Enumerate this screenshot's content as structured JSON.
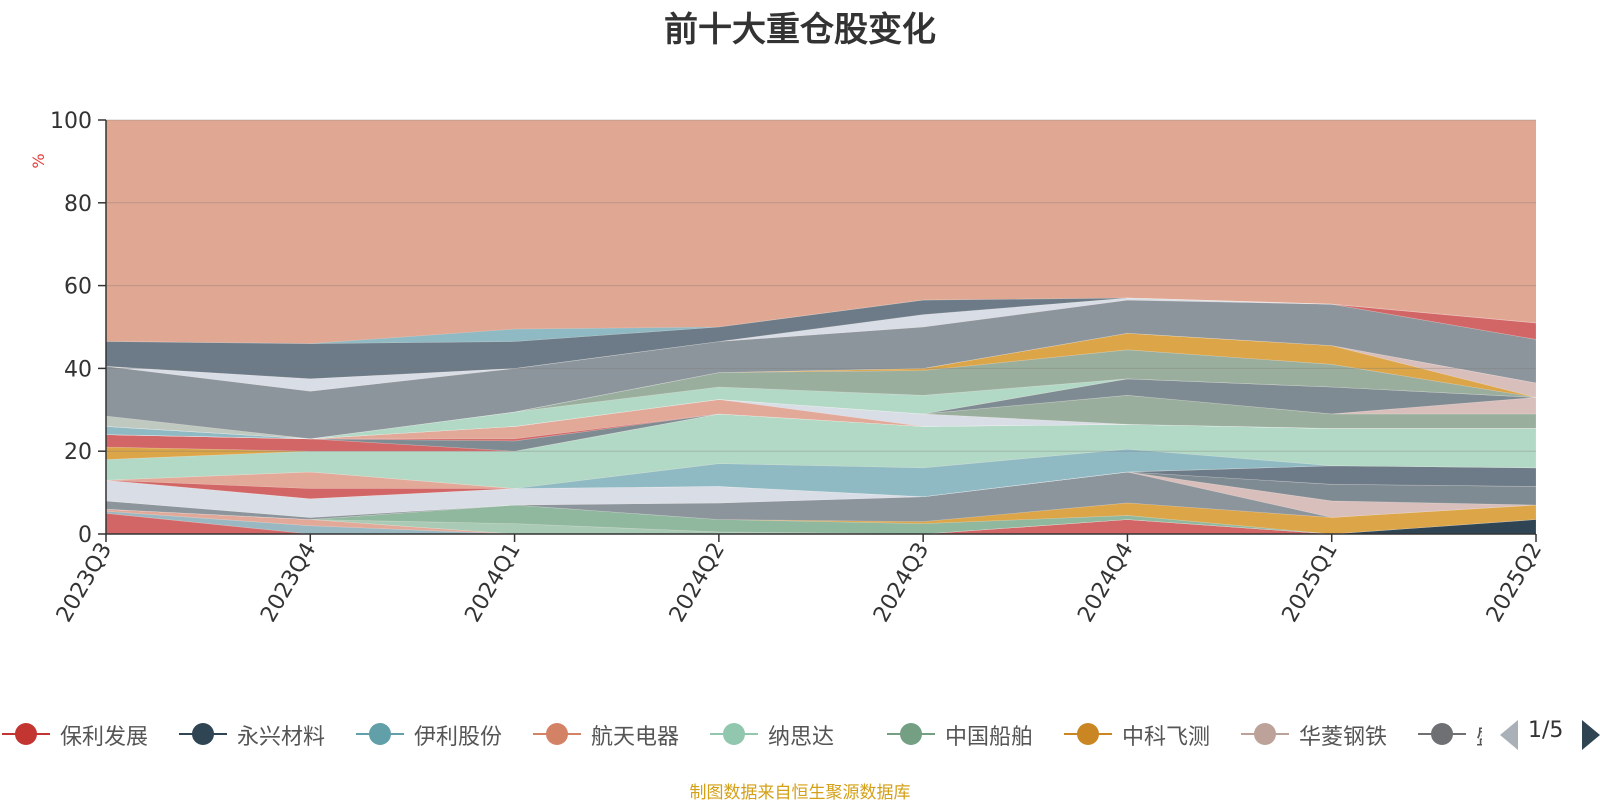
{
  "chart_data": {
    "type": "area",
    "title": "前十大重仓股变化",
    "ylabel": "%",
    "ylim": [
      0,
      100
    ],
    "yticks": [
      0,
      20,
      40,
      60,
      80,
      100
    ],
    "categories": [
      "2023Q3",
      "2023Q4",
      "2024Q1",
      "2024Q2",
      "2024Q3",
      "2024Q4",
      "2025Q1",
      "2025Q2"
    ],
    "grid": true,
    "stacked": true,
    "background_fill": "#e0a792",
    "layers": [
      {
        "color": "#d26666",
        "values": [
          5,
          0,
          0,
          0,
          0,
          3.5,
          0,
          0
        ]
      },
      {
        "color": "#9ab8c2",
        "values": [
          0.5,
          2,
          0,
          0,
          0,
          0,
          0,
          0
        ]
      },
      {
        "color": "#e2a898",
        "values": [
          0.5,
          1.5,
          0,
          0,
          0,
          0,
          0,
          0
        ]
      },
      {
        "color": "#2f4554",
        "values": [
          0,
          0,
          0,
          0,
          0,
          0,
          0,
          3.5
        ]
      },
      {
        "color": "#a9cbb6",
        "values": [
          0,
          0,
          2.5,
          0.5,
          0,
          0,
          0,
          0
        ]
      },
      {
        "color": "#90b89f",
        "values": [
          0,
          0,
          4.5,
          3,
          2.5,
          1,
          0,
          0
        ]
      },
      {
        "color": "#dba548",
        "values": [
          0,
          0,
          0,
          0,
          0.5,
          3,
          4,
          3.5
        ]
      },
      {
        "color": "#8c959c",
        "values": [
          2,
          0.5,
          0,
          4,
          6,
          7.5,
          0,
          0
        ]
      },
      {
        "color": "#d9bfbb",
        "values": [
          0,
          0,
          0,
          0,
          0,
          0,
          4,
          0
        ]
      },
      {
        "color": "#7f8b92",
        "values": [
          0,
          0,
          0,
          0,
          0,
          0,
          4,
          4.5
        ]
      },
      {
        "color": "#d8dde6",
        "values": [
          5,
          4.5,
          4,
          4,
          0,
          0,
          0,
          0
        ]
      },
      {
        "color": "#6c7b87",
        "values": [
          0,
          0,
          0,
          0,
          0,
          0,
          4.5,
          4.5
        ]
      },
      {
        "color": "#d26666",
        "values": [
          0,
          2.5,
          0,
          0,
          0,
          0,
          0,
          0
        ]
      },
      {
        "color": "#e2a898",
        "values": [
          0,
          4,
          0,
          0,
          0,
          0,
          0,
          0
        ]
      },
      {
        "color": "#8fbac4",
        "values": [
          0,
          0,
          0,
          5.5,
          7,
          5.5,
          0,
          0
        ]
      },
      {
        "color": "#b2d9c5",
        "values": [
          5,
          5,
          9,
          12,
          10,
          6,
          9,
          9.5
        ]
      },
      {
        "color": "#dba548",
        "values": [
          3,
          0,
          0,
          0,
          0,
          0,
          0,
          0
        ]
      },
      {
        "color": "#d26666",
        "values": [
          3,
          3,
          0,
          0,
          0,
          0,
          0,
          0
        ]
      },
      {
        "color": "#7f8b92",
        "values": [
          0,
          0,
          2.5,
          0,
          0,
          0,
          0,
          0
        ]
      },
      {
        "color": "#d26666",
        "values": [
          0,
          0,
          0.5,
          0,
          0,
          0,
          0,
          0
        ]
      },
      {
        "color": "#e2a898",
        "values": [
          0,
          0,
          3,
          3.5,
          0,
          0,
          0,
          0
        ]
      },
      {
        "color": "#d8dde6",
        "values": [
          0,
          0,
          0,
          0,
          3,
          0,
          0,
          0
        ]
      },
      {
        "color": "#9aae9e",
        "values": [
          0,
          0,
          0,
          0,
          0,
          7,
          3.5,
          3.5
        ]
      },
      {
        "color": "#d9bfbb",
        "values": [
          0,
          0,
          0,
          0,
          0,
          0,
          0,
          4
        ]
      },
      {
        "color": "#7f8b92",
        "values": [
          0,
          0,
          0,
          0,
          0,
          4,
          6.5,
          0
        ]
      },
      {
        "color": "#8fbac4",
        "values": [
          2,
          0,
          0,
          0,
          0,
          0,
          0,
          0
        ]
      },
      {
        "color": "#b2d9c5",
        "values": [
          0,
          0,
          3.5,
          3,
          4.5,
          0,
          0,
          0
        ]
      },
      {
        "color": "#9aae9e",
        "values": [
          0,
          0,
          0,
          3.5,
          6,
          7,
          5.5,
          0
        ]
      },
      {
        "color": "#dba548",
        "values": [
          0,
          0,
          0,
          0,
          0.5,
          4,
          4.5,
          0
        ]
      },
      {
        "color": "#d9bfbb",
        "values": [
          0,
          0,
          0,
          0,
          0,
          0,
          0,
          3.5
        ]
      },
      {
        "color": "#c0c9c0",
        "values": [
          2.5,
          0,
          0,
          0,
          0,
          0,
          0,
          0
        ]
      },
      {
        "color": "#8c959c",
        "values": [
          12,
          11.5,
          10.5,
          7.5,
          10,
          8,
          10,
          10.5
        ]
      },
      {
        "color": "#d8dde6",
        "values": [
          0,
          3,
          0,
          0,
          3,
          0.5,
          0,
          0
        ]
      },
      {
        "color": "#d26666",
        "values": [
          0,
          0,
          0,
          0,
          0,
          0,
          0,
          4
        ]
      },
      {
        "color": "#6c7b87",
        "values": [
          6,
          8.5,
          6.5,
          3.5,
          3.5,
          0,
          0,
          0
        ]
      },
      {
        "color": "#8fbac4",
        "values": [
          0,
          0,
          3,
          0,
          0,
          0,
          0,
          0
        ]
      }
    ],
    "legend_position": "bottom",
    "legend": [
      {
        "name": "保利发展",
        "color": "#c23531"
      },
      {
        "name": "永兴材料",
        "color": "#2f4554"
      },
      {
        "name": "伊利股份",
        "color": "#61a0a8"
      },
      {
        "name": "航天电器",
        "color": "#d48265"
      },
      {
        "name": "纳思达",
        "color": "#91c7ae"
      },
      {
        "name": "中国船舶",
        "color": "#749f83"
      },
      {
        "name": "中科飞测",
        "color": "#ca8622"
      },
      {
        "name": "华菱钢铁",
        "color": "#bda29a"
      },
      {
        "name": "盛",
        "color": "#6e7074"
      }
    ],
    "legend_page": "1/5",
    "source_note": "制图数据来自恒生聚源数据库"
  }
}
